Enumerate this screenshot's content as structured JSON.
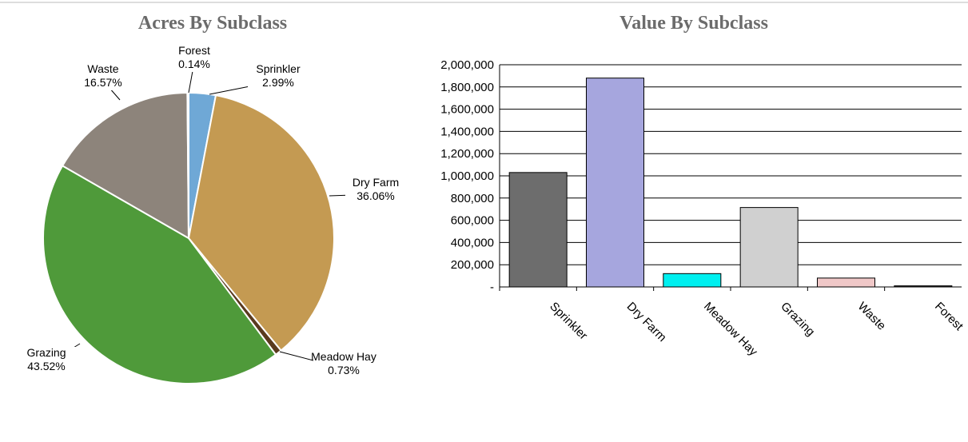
{
  "chart_data": [
    {
      "type": "pie",
      "title": "Acres By Subclass",
      "categories": [
        "Sprinkler",
        "Dry Farm",
        "Meadow Hay",
        "Grazing",
        "Waste",
        "Forest"
      ],
      "values": [
        2.99,
        36.06,
        0.73,
        43.52,
        16.57,
        0.14
      ],
      "value_labels": [
        "2.99%",
        "36.06%",
        "0.73%",
        "43.52%",
        "16.57%",
        "0.14%"
      ],
      "colors": [
        "#6fa8d6",
        "#c49a52",
        "#5a3a1e",
        "#4f9a3a",
        "#8d847b",
        "#b8b8b8"
      ]
    },
    {
      "type": "bar",
      "title": "Value By Subclass",
      "categories": [
        "Sprinkler",
        "Dry Farm",
        "Meadow Hay",
        "Grazing",
        "Waste",
        "Forest"
      ],
      "values": [
        1030000,
        1880000,
        120000,
        715000,
        80000,
        10000
      ],
      "colors": [
        "#6d6d6d",
        "#a6a6de",
        "#00f0f0",
        "#d0d0d0",
        "#f0c8c8",
        "#333333"
      ],
      "ylim": [
        0,
        2000000
      ],
      "yticks": [
        {
          "value": 0,
          "label": "-"
        },
        {
          "value": 200000,
          "label": "200,000"
        },
        {
          "value": 400000,
          "label": "400,000"
        },
        {
          "value": 600000,
          "label": "600,000"
        },
        {
          "value": 800000,
          "label": "800,000"
        },
        {
          "value": 1000000,
          "label": "1,000,000"
        },
        {
          "value": 1200000,
          "label": "1,200,000"
        },
        {
          "value": 1400000,
          "label": "1,400,000"
        },
        {
          "value": 1600000,
          "label": "1,600,000"
        },
        {
          "value": 1800000,
          "label": "1,800,000"
        },
        {
          "value": 2000000,
          "label": "2,000,000"
        }
      ],
      "grid": true
    }
  ]
}
